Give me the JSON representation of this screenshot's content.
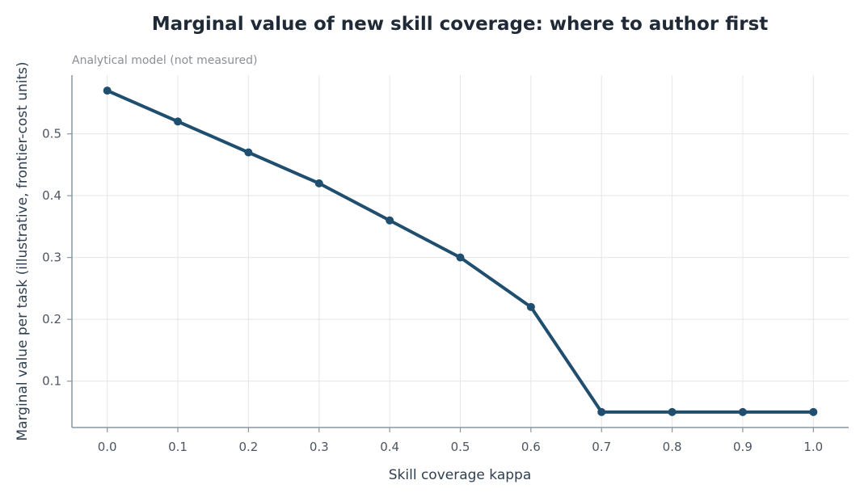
{
  "chart_data": {
    "type": "line",
    "title": "Marginal value of new skill coverage: where to author first",
    "subtitle": "Analytical model (not measured)",
    "xlabel": "Skill coverage kappa",
    "ylabel": "Marginal value per task (illustrative, frontier-cost units)",
    "x": [
      0.0,
      0.1,
      0.2,
      0.3,
      0.4,
      0.5,
      0.6,
      0.7,
      0.8,
      0.9,
      1.0
    ],
    "series": [
      {
        "values": [
          0.57,
          0.52,
          0.47,
          0.42,
          0.36,
          0.3,
          0.22,
          0.05,
          0.05,
          0.05,
          0.05
        ]
      }
    ],
    "x_ticks": [
      "0.0",
      "0.1",
      "0.2",
      "0.3",
      "0.4",
      "0.5",
      "0.6",
      "0.7",
      "0.8",
      "0.9",
      "1.0"
    ],
    "y_ticks": [
      "0.1",
      "0.2",
      "0.3",
      "0.4",
      "0.5"
    ],
    "xlim": [
      -0.05,
      1.05
    ],
    "ylim": [
      0.025,
      0.595
    ],
    "grid": true,
    "line_color": "#1f4e6e"
  }
}
